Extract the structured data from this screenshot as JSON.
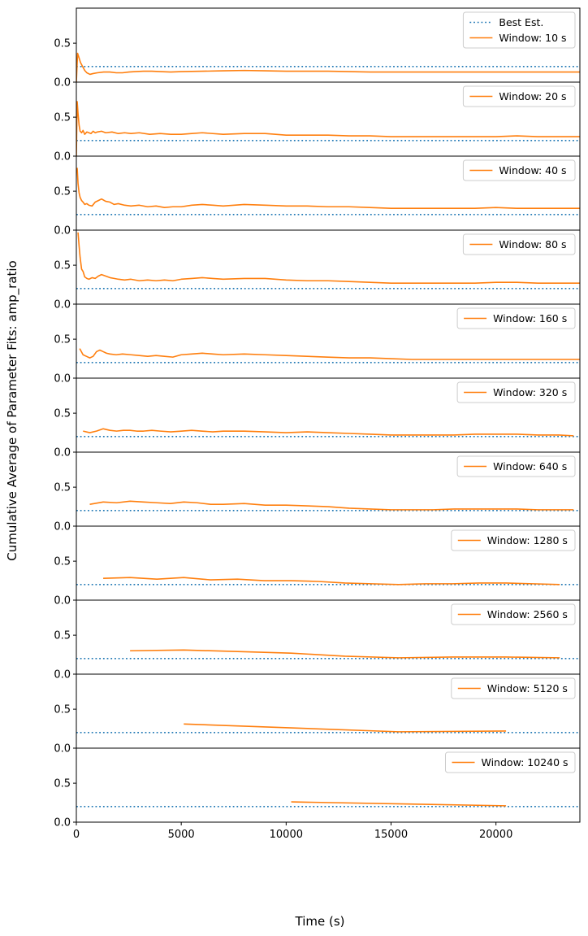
{
  "figure": {
    "ylabel": "Cumulative Average of Parameter Fits: amp_ratio",
    "xlabel": "Time (s)"
  },
  "colors": {
    "best_estimate": "#1f77b4",
    "window_series": "#ff7f0e"
  },
  "chart_data": {
    "type": "line",
    "xlim": [
      0,
      24000
    ],
    "ylim": [
      0,
      0.95
    ],
    "xticks": [
      0,
      5000,
      10000,
      15000,
      20000
    ],
    "xtick_labels": [
      "0",
      "5000",
      "10000",
      "15000",
      "20000"
    ],
    "yticks": [
      0.0,
      0.5
    ],
    "ytick_labels": [
      "0.0",
      "0.5"
    ],
    "best_estimate": {
      "name": "Best Est.",
      "value": 0.2,
      "style": "dotted"
    },
    "grid": false,
    "legend_position": "upper right",
    "panels": [
      {
        "name": "Window: 10 s",
        "window": 10,
        "x": [
          0,
          60,
          120,
          200,
          300,
          400,
          500,
          650,
          800,
          1000,
          1300,
          1600,
          1900,
          2200,
          2500,
          2800,
          3200,
          3600,
          4000,
          4500,
          5000,
          6000,
          7000,
          8000,
          9000,
          10000,
          11000,
          12000,
          13000,
          14000,
          15000,
          16000,
          17000,
          18000,
          19000,
          20000,
          21000,
          22000,
          23000,
          24000
        ],
        "y": [
          0.0,
          0.37,
          0.32,
          0.25,
          0.2,
          0.15,
          0.12,
          0.1,
          0.11,
          0.12,
          0.13,
          0.13,
          0.12,
          0.12,
          0.13,
          0.135,
          0.14,
          0.14,
          0.135,
          0.13,
          0.135,
          0.14,
          0.145,
          0.15,
          0.145,
          0.14,
          0.14,
          0.14,
          0.135,
          0.13,
          0.13,
          0.13,
          0.13,
          0.13,
          0.13,
          0.13,
          0.13,
          0.13,
          0.13,
          0.13
        ]
      },
      {
        "name": "Window: 20 s",
        "window": 20,
        "x": [
          0,
          40,
          80,
          130,
          180,
          250,
          320,
          400,
          500,
          600,
          700,
          800,
          900,
          1000,
          1200,
          1400,
          1700,
          2000,
          2300,
          2600,
          3000,
          3500,
          4000,
          4500,
          5000,
          5500,
          6000,
          7000,
          8000,
          9000,
          10000,
          11000,
          12000,
          13000,
          14000,
          15000,
          16000,
          17000,
          18000,
          19000,
          20000,
          21000,
          22000,
          23000,
          24000
        ],
        "y": [
          0.0,
          0.7,
          0.55,
          0.4,
          0.32,
          0.3,
          0.33,
          0.28,
          0.31,
          0.3,
          0.29,
          0.32,
          0.3,
          0.31,
          0.32,
          0.3,
          0.31,
          0.29,
          0.3,
          0.29,
          0.3,
          0.28,
          0.29,
          0.28,
          0.28,
          0.29,
          0.3,
          0.28,
          0.29,
          0.29,
          0.27,
          0.27,
          0.27,
          0.26,
          0.26,
          0.25,
          0.25,
          0.25,
          0.25,
          0.25,
          0.25,
          0.26,
          0.25,
          0.25,
          0.25
        ]
      },
      {
        "name": "Window: 40 s",
        "window": 40,
        "x": [
          40,
          80,
          130,
          180,
          250,
          320,
          400,
          500,
          600,
          750,
          900,
          1050,
          1200,
          1400,
          1600,
          1800,
          2000,
          2300,
          2600,
          3000,
          3400,
          3800,
          4200,
          4600,
          5000,
          5500,
          6000,
          6500,
          7000,
          8000,
          9000,
          10000,
          11000,
          12000,
          13000,
          14000,
          15000,
          16000,
          17000,
          18000,
          19000,
          20000,
          21000,
          22000,
          23000,
          24000
        ],
        "y": [
          0.8,
          0.6,
          0.48,
          0.42,
          0.38,
          0.36,
          0.33,
          0.34,
          0.32,
          0.31,
          0.36,
          0.38,
          0.4,
          0.37,
          0.36,
          0.33,
          0.34,
          0.32,
          0.31,
          0.32,
          0.3,
          0.31,
          0.29,
          0.3,
          0.3,
          0.32,
          0.33,
          0.32,
          0.31,
          0.33,
          0.32,
          0.31,
          0.31,
          0.3,
          0.3,
          0.29,
          0.28,
          0.28,
          0.28,
          0.28,
          0.28,
          0.29,
          0.28,
          0.28,
          0.28,
          0.28
        ]
      },
      {
        "name": "Window: 80 s",
        "window": 80,
        "x": [
          80,
          130,
          180,
          250,
          320,
          400,
          500,
          600,
          750,
          900,
          1050,
          1200,
          1400,
          1600,
          1800,
          2000,
          2300,
          2600,
          3000,
          3400,
          3800,
          4200,
          4600,
          5000,
          5500,
          6000,
          6500,
          7000,
          8000,
          9000,
          10000,
          11000,
          12000,
          13000,
          14000,
          15000,
          16000,
          17000,
          18000,
          19000,
          20000,
          21000,
          22000,
          23000,
          24000
        ],
        "y": [
          0.92,
          0.75,
          0.6,
          0.45,
          0.42,
          0.35,
          0.33,
          0.32,
          0.34,
          0.33,
          0.36,
          0.38,
          0.36,
          0.34,
          0.33,
          0.32,
          0.31,
          0.32,
          0.3,
          0.31,
          0.3,
          0.31,
          0.3,
          0.32,
          0.33,
          0.34,
          0.33,
          0.32,
          0.33,
          0.33,
          0.31,
          0.3,
          0.3,
          0.29,
          0.28,
          0.27,
          0.27,
          0.27,
          0.27,
          0.27,
          0.28,
          0.28,
          0.27,
          0.27,
          0.27
        ]
      },
      {
        "name": "Window: 160 s",
        "window": 160,
        "x": [
          160,
          320,
          480,
          640,
          800,
          960,
          1120,
          1280,
          1440,
          1600,
          1900,
          2200,
          2600,
          3000,
          3400,
          3800,
          4200,
          4600,
          5000,
          5500,
          6000,
          6500,
          7000,
          8000,
          9000,
          10000,
          11000,
          12000,
          13000,
          14000,
          15000,
          16000,
          17000,
          18000,
          19000,
          20000,
          21000,
          22000,
          23000,
          24000
        ],
        "y": [
          0.38,
          0.3,
          0.28,
          0.26,
          0.28,
          0.34,
          0.36,
          0.34,
          0.32,
          0.31,
          0.3,
          0.31,
          0.3,
          0.29,
          0.28,
          0.29,
          0.28,
          0.27,
          0.3,
          0.31,
          0.32,
          0.31,
          0.3,
          0.31,
          0.3,
          0.29,
          0.28,
          0.27,
          0.26,
          0.26,
          0.25,
          0.24,
          0.24,
          0.24,
          0.24,
          0.24,
          0.24,
          0.24,
          0.24,
          0.24
        ]
      },
      {
        "name": "Window: 320 s",
        "window": 320,
        "x": [
          320,
          640,
          960,
          1280,
          1600,
          1920,
          2240,
          2560,
          2880,
          3200,
          3600,
          4000,
          4500,
          5000,
          5500,
          6000,
          6500,
          7000,
          8000,
          9000,
          10000,
          11000,
          12000,
          13000,
          14000,
          15000,
          16000,
          17000,
          18000,
          19000,
          20000,
          21000,
          22000,
          23000,
          23700
        ],
        "y": [
          0.27,
          0.25,
          0.27,
          0.3,
          0.28,
          0.27,
          0.28,
          0.28,
          0.27,
          0.27,
          0.28,
          0.27,
          0.26,
          0.27,
          0.28,
          0.27,
          0.26,
          0.27,
          0.27,
          0.26,
          0.25,
          0.26,
          0.25,
          0.24,
          0.23,
          0.22,
          0.22,
          0.22,
          0.22,
          0.23,
          0.23,
          0.23,
          0.22,
          0.22,
          0.21
        ]
      },
      {
        "name": "Window: 640 s",
        "window": 640,
        "x": [
          640,
          1280,
          1920,
          2560,
          3200,
          3840,
          4480,
          5120,
          5760,
          6400,
          7000,
          8000,
          9000,
          10000,
          11000,
          12000,
          13000,
          14000,
          15000,
          16000,
          17000,
          18000,
          19000,
          20000,
          21000,
          22000,
          23000,
          23700
        ],
        "y": [
          0.28,
          0.31,
          0.3,
          0.32,
          0.31,
          0.3,
          0.29,
          0.31,
          0.3,
          0.28,
          0.28,
          0.29,
          0.27,
          0.27,
          0.26,
          0.25,
          0.23,
          0.22,
          0.21,
          0.21,
          0.21,
          0.22,
          0.22,
          0.22,
          0.22,
          0.21,
          0.21,
          0.21
        ]
      },
      {
        "name": "Window: 1280 s",
        "window": 1280,
        "x": [
          1280,
          2560,
          3840,
          5120,
          6400,
          7680,
          8960,
          10240,
          11520,
          12800,
          14080,
          15360,
          16640,
          17920,
          19200,
          20480,
          21760,
          23040
        ],
        "y": [
          0.28,
          0.29,
          0.27,
          0.29,
          0.26,
          0.27,
          0.25,
          0.25,
          0.24,
          0.22,
          0.21,
          0.2,
          0.21,
          0.21,
          0.22,
          0.22,
          0.21,
          0.2
        ]
      },
      {
        "name": "Window: 2560 s",
        "window": 2560,
        "x": [
          2560,
          5120,
          7680,
          10240,
          12800,
          15360,
          17920,
          20480,
          23040
        ],
        "y": [
          0.3,
          0.31,
          0.29,
          0.27,
          0.23,
          0.21,
          0.22,
          0.22,
          0.21
        ]
      },
      {
        "name": "Window: 5120 s",
        "window": 5120,
        "x": [
          5120,
          10240,
          15360,
          20480
        ],
        "y": [
          0.31,
          0.26,
          0.21,
          0.22
        ]
      },
      {
        "name": "Window: 10240 s",
        "window": 10240,
        "x": [
          10240,
          20480
        ],
        "y": [
          0.26,
          0.21
        ]
      }
    ]
  }
}
